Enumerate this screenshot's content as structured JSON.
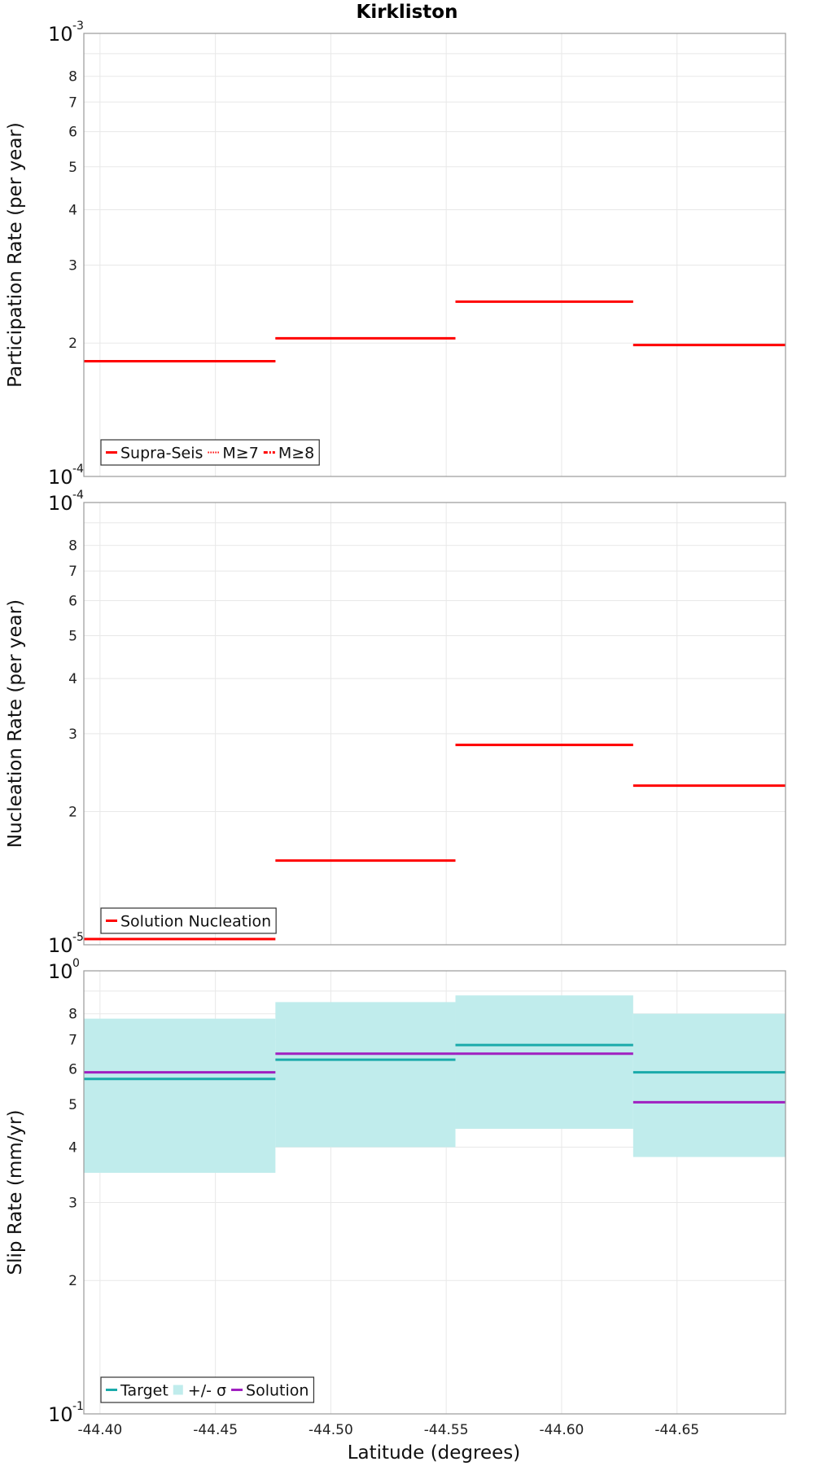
{
  "chart_data": {
    "type": "line",
    "title": "Kirkliston",
    "xlabel": "Latitude (degrees)",
    "xlim": [
      -44.393,
      -44.697
    ],
    "x_ticks": [
      -44.4,
      -44.45,
      -44.5,
      -44.55,
      -44.6,
      -44.65
    ],
    "x_tick_labels": [
      "-44.40",
      "-44.45",
      "-44.50",
      "-44.55",
      "-44.60",
      "-44.65"
    ],
    "segment_edges": [
      -44.393,
      -44.476,
      -44.554,
      -44.631,
      -44.697
    ],
    "panels": [
      {
        "id": "participation",
        "ylabel": "Participation Rate (per year)",
        "scale": "log",
        "ylim": [
          0.0001,
          0.001
        ],
        "minor_tick_labels": [
          "2",
          "3",
          "4",
          "5",
          "6",
          "7",
          "8"
        ],
        "decade_labels": [
          {
            "base": "10",
            "exp": "-4"
          },
          {
            "base": "10",
            "exp": "-3"
          }
        ],
        "series": [
          {
            "name": "Supra-Seis",
            "style": "solid",
            "color": "#ff0000",
            "values": [
              0.000182,
              0.000205,
              0.000248,
              0.000198
            ]
          },
          {
            "name": "M≥7",
            "style": "dotted",
            "color": "#ff0000",
            "values": [
              0.000182,
              0.000205,
              0.000248,
              0.000198
            ]
          },
          {
            "name": "M≥8",
            "style": "dashdot",
            "color": "#ff0000",
            "values": [
              null,
              null,
              null,
              null
            ]
          }
        ],
        "legend_position": "bottom-left"
      },
      {
        "id": "nucleation",
        "ylabel": "Nucleation Rate (per year)",
        "scale": "log",
        "ylim": [
          1e-05,
          0.0001
        ],
        "minor_tick_labels": [
          "2",
          "3",
          "4",
          "5",
          "6",
          "7",
          "8"
        ],
        "decade_labels": [
          {
            "base": "10",
            "exp": "-5"
          },
          {
            "base": "10",
            "exp": "-4"
          }
        ],
        "series": [
          {
            "name": "Solution Nucleation",
            "style": "solid",
            "color": "#ff0000",
            "values": [
              1.03e-05,
              1.55e-05,
              2.83e-05,
              2.29e-05
            ]
          }
        ],
        "legend_position": "bottom-left"
      },
      {
        "id": "slip",
        "ylabel": "Slip Rate (mm/yr)",
        "scale": "log",
        "ylim": [
          0.1,
          1
        ],
        "minor_tick_labels": [
          "2",
          "3",
          "4",
          "5",
          "6",
          "7",
          "8"
        ],
        "decade_labels": [
          {
            "base": "10",
            "exp": "-1"
          },
          {
            "base": "10",
            "exp": "0"
          }
        ],
        "series": [
          {
            "name": "Target",
            "style": "solid",
            "color": "#1aaaaa",
            "values": [
              0.57,
              0.63,
              0.68,
              0.59
            ]
          },
          {
            "name": "+/- σ",
            "style": "band",
            "color": "#c0ecec",
            "lower": [
              0.35,
              0.4,
              0.44,
              0.38
            ],
            "upper": [
              0.78,
              0.85,
              0.88,
              0.8
            ]
          },
          {
            "name": "Solution",
            "style": "solid",
            "color": "#a020c0",
            "values": [
              0.59,
              0.65,
              0.65,
              0.505
            ]
          }
        ],
        "legend_position": "bottom-left"
      }
    ]
  }
}
